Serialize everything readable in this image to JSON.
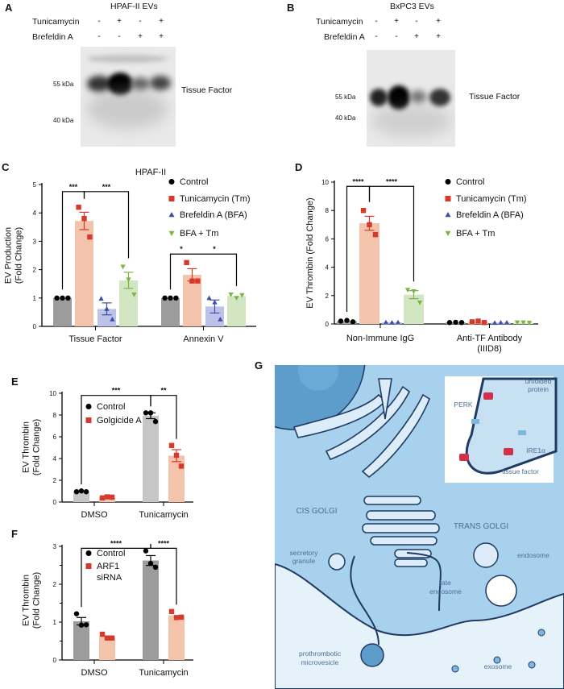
{
  "panels": {
    "A": {
      "letter": "A",
      "title": "HPAF-II EVs",
      "row1_label": "Tunicamycin",
      "row1_signs": [
        "-",
        "+",
        "-",
        "+"
      ],
      "row2_label": "Brefeldin A",
      "row2_signs": [
        "-",
        "-",
        "+",
        "+"
      ],
      "mw_high": "55 kDa",
      "mw_low": "40 kDa",
      "band_label": "Tissue Factor"
    },
    "B": {
      "letter": "B",
      "title": "BxPC3 EVs",
      "row1_label": "Tunicamycin",
      "row1_signs": [
        "-",
        "+",
        "-",
        "+"
      ],
      "row2_label": "Brefeldin A",
      "row2_signs": [
        "-",
        "-",
        "+",
        "+"
      ],
      "mw_high": "55 kDa",
      "mw_low": "40 kDa",
      "band_label": "Tissue Factor"
    },
    "C": {
      "letter": "C"
    },
    "D": {
      "letter": "D"
    },
    "E": {
      "letter": "E"
    },
    "F": {
      "letter": "F"
    },
    "G": {
      "letter": "G",
      "labels": {
        "unfolded1": "unfolded",
        "unfolded2": "protein",
        "perk": "PERK",
        "ire1": "IRE1α",
        "tissue_factor": "tissue factor",
        "cis_golgi": "CIS GOLGI",
        "trans_golgi": "TRANS GOLGI",
        "secretory1": "secretory",
        "secretory2": "granule",
        "endosome": "endosome",
        "late1": "late",
        "late2": "endosome",
        "micro1": "prothrombotic",
        "micro2": "microvesicle",
        "exosome": "exosome"
      },
      "colors": {
        "cell": "#9ccbe9",
        "outside": "#e6f2fa",
        "nucleus": "#5d9dcb",
        "membrane": "#1f3a63",
        "tissue_factor": "#d2304a",
        "receptor": "#7fb6de",
        "label": "#4f6f96"
      }
    }
  },
  "chart_data": [
    {
      "panel": "C",
      "type": "bar",
      "title": "HPAF-II",
      "ylabel_lines": [
        "EV Production",
        "(Fold Change)"
      ],
      "categories": [
        "Tissue Factor",
        "Annexin V"
      ],
      "ylim": [
        0,
        5
      ],
      "yticks": [
        0,
        1,
        2,
        3,
        4,
        5
      ],
      "legend": "top-right",
      "series": [
        {
          "name": "Control",
          "marker": "circle",
          "color": "#000000",
          "bar_color": "#9c9c9c",
          "points": [
            [
              1,
              1,
              1
            ],
            [
              1,
              1,
              1
            ]
          ]
        },
        {
          "name": "Tunicamycin (Tm)",
          "marker": "square",
          "color": "#d63a2c",
          "bar_color": "#f3c3ab",
          "points": [
            [
              4.2,
              3.8,
              3.15
            ],
            [
              2.25,
              1.6,
              1.6
            ]
          ]
        },
        {
          "name": "Brefeldin A (BFA)",
          "marker": "triangle",
          "color": "#3e4fa6",
          "bar_color": "#bcc2e8",
          "points": [
            [
              0.98,
              0.62,
              0.25
            ],
            [
              1.0,
              0.85,
              0.25
            ]
          ]
        },
        {
          "name": "BFA + Tm",
          "marker": "triangle-down",
          "color": "#7db545",
          "bar_color": "#d2e6c2",
          "points": [
            [
              2.1,
              1.65,
              1.12
            ],
            [
              1.12,
              1.0,
              1.1
            ]
          ]
        }
      ],
      "comparisons": [
        {
          "a": [
            0,
            0
          ],
          "b": [
            0,
            1
          ],
          "label": "***"
        },
        {
          "a": [
            0,
            1
          ],
          "b": [
            0,
            3
          ],
          "label": "***"
        },
        {
          "a": [
            1,
            0
          ],
          "b": [
            1,
            1
          ],
          "label": "*"
        },
        {
          "a": [
            1,
            1
          ],
          "b": [
            1,
            3
          ],
          "label": "*"
        }
      ]
    },
    {
      "panel": "D",
      "type": "bar",
      "title": "",
      "ylabel_lines": [
        "EV Thrombin (Fold Change)"
      ],
      "categories": [
        "Non-Immune IgG",
        "Anti-TF Antibody (IIID8)"
      ],
      "ylim": [
        0,
        10
      ],
      "yticks": [
        0,
        2,
        4,
        6,
        8,
        10
      ],
      "legend": "top-right",
      "series": [
        {
          "name": "Control",
          "marker": "circle",
          "color": "#000000",
          "bar_color": "#9c9c9c",
          "points": [
            [
              0.2,
              0.25,
              0.15
            ],
            [
              0.1,
              0.12,
              0.1
            ]
          ]
        },
        {
          "name": "Tunicamycin (Tm)",
          "marker": "square",
          "color": "#d63a2c",
          "bar_color": "#f3c3ab",
          "points": [
            [
              8.0,
              7.0,
              6.3
            ],
            [
              0.15,
              0.2,
              0.1
            ]
          ]
        },
        {
          "name": "Brefeldin A (BFA)",
          "marker": "triangle",
          "color": "#3e4fa6",
          "bar_color": "#bcc2e8",
          "points": [
            [
              0.12,
              0.1,
              0.12
            ],
            [
              0.08,
              0.1,
              0.1
            ]
          ]
        },
        {
          "name": "BFA + Tm",
          "marker": "triangle-down",
          "color": "#7db545",
          "bar_color": "#d2e6c2",
          "points": [
            [
              2.4,
              2.3,
              1.5
            ],
            [
              0.1,
              0.1,
              0.08
            ]
          ]
        }
      ],
      "comparisons": [
        {
          "a": [
            0,
            0
          ],
          "b": [
            0,
            1
          ],
          "label": "****"
        },
        {
          "a": [
            0,
            1
          ],
          "b": [
            0,
            3
          ],
          "label": "****"
        }
      ]
    },
    {
      "panel": "E",
      "type": "bar",
      "title": "",
      "ylabel_lines": [
        "EV Thrombin",
        "(Fold Change)"
      ],
      "categories": [
        "DMSO",
        "Tunicamycin"
      ],
      "ylim": [
        0,
        10
      ],
      "yticks": [
        0,
        2,
        4,
        6,
        8,
        10
      ],
      "legend": "top-left",
      "series": [
        {
          "name": "Control",
          "marker": "circle",
          "color": "#000000",
          "bar_color": "#c6c6c6",
          "points": [
            [
              0.95,
              1.02,
              0.95
            ],
            [
              8.2,
              8.2,
              7.4
            ]
          ]
        },
        {
          "name": "Golgicide A",
          "marker": "square",
          "color": "#d63a2c",
          "bar_color": "#f3c3ab",
          "points": [
            [
              0.38,
              0.48,
              0.45
            ],
            [
              5.2,
              4.3,
              3.3
            ]
          ]
        }
      ],
      "comparisons": [
        {
          "a": [
            0,
            0
          ],
          "b": [
            1,
            0
          ],
          "label": "***"
        },
        {
          "a": [
            1,
            0
          ],
          "b": [
            1,
            1
          ],
          "label": "**"
        }
      ]
    },
    {
      "panel": "F",
      "type": "bar",
      "title": "",
      "ylabel_lines": [
        "EV Thrombin",
        "(Fold Change)"
      ],
      "categories": [
        "DMSO",
        "Tunicamycin"
      ],
      "ylim": [
        0,
        3
      ],
      "yticks": [
        0,
        1,
        2,
        3
      ],
      "legend": "top-left",
      "series": [
        {
          "name": "Control",
          "marker": "circle",
          "color": "#000000",
          "bar_color": "#9c9c9c",
          "points": [
            [
              1.22,
              0.92,
              0.93
            ],
            [
              2.88,
              2.55,
              2.45
            ]
          ]
        },
        {
          "name": "ARF1 siRNA",
          "marker": "square",
          "color": "#d63a2c",
          "bar_color": "#f3c3ab",
          "points": [
            [
              0.68,
              0.58,
              0.58
            ],
            [
              1.28,
              1.12,
              1.13
            ]
          ]
        }
      ],
      "comparisons": [
        {
          "a": [
            0,
            0
          ],
          "b": [
            1,
            0
          ],
          "label": "****"
        },
        {
          "a": [
            1,
            0
          ],
          "b": [
            1,
            1
          ],
          "label": "****"
        }
      ]
    }
  ]
}
